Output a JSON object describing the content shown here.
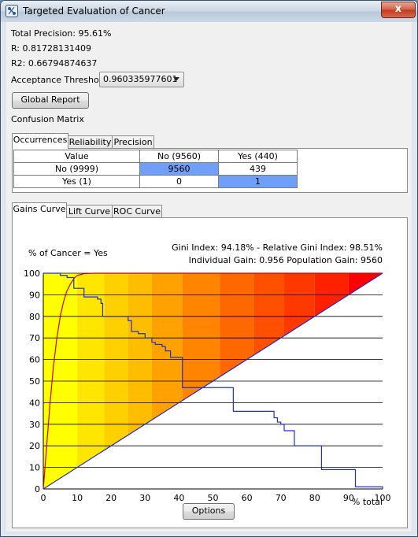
{
  "window": {
    "title": "Targeted Evaluation of  Cancer",
    "close_label": "x"
  },
  "stats": {
    "total_precision": "Total Precision: 95.61%",
    "r": "R: 0.81728131409",
    "r2": "R2: 0.66794874637"
  },
  "threshold": {
    "label": "Acceptance Threshold:",
    "value": "0.960335977601"
  },
  "global_report_label": "Global Report",
  "confusion_matrix_label": "Confusion Matrix",
  "matrix_tabs": [
    "Occurrences",
    "Reliability",
    "Precision"
  ],
  "matrix": {
    "headers": [
      "Value",
      "No (9560)",
      "Yes (440)"
    ],
    "rows": [
      {
        "label": "No (9999)",
        "cells": [
          "9560",
          "439"
        ]
      },
      {
        "label": "Yes (1)",
        "cells": [
          "0",
          "1"
        ]
      }
    ]
  },
  "chart_tabs": [
    "Gains Curve",
    "Lift Curve",
    "ROC Curve"
  ],
  "options_label": "Options",
  "colors": {
    "highlight_cell": "#6f9ff6",
    "gains_curve": "#cc0000",
    "model_curve": "#1f2fd0"
  },
  "chart_data": {
    "type": "line",
    "title": "",
    "ylabel": "% of Cancer = Yes",
    "xlabel": "% total",
    "info_line1": "Gini Index: 94.18% - Relative Gini Index: 98.51%",
    "info_line2": "Individual Gain: 0.956 Population Gain: 9560",
    "xlim": [
      0,
      100
    ],
    "ylim": [
      0,
      100
    ],
    "x_ticks": [
      0,
      10,
      20,
      30,
      40,
      50,
      60,
      70,
      80,
      90,
      100
    ],
    "y_ticks": [
      0,
      10,
      20,
      30,
      40,
      50,
      60,
      70,
      80,
      90,
      100
    ],
    "grid": "horizontal",
    "series": [
      {
        "x": [
          0,
          1,
          2,
          3,
          4,
          5,
          6,
          7,
          8,
          9,
          10,
          12,
          15,
          100
        ],
        "values": [
          0,
          20,
          40,
          57,
          70,
          80,
          87,
          92,
          95,
          97.5,
          99,
          99.8,
          100,
          100
        ]
      },
      {
        "x": [
          0,
          0.7,
          5,
          7,
          9,
          12,
          16,
          17,
          17.5,
          25,
          26,
          28,
          30,
          32,
          33,
          35,
          36,
          37.5,
          41,
          55,
          56,
          65,
          68,
          69,
          70,
          71,
          74,
          82,
          91,
          92,
          100
        ],
        "values": [
          100,
          100,
          99,
          98,
          93,
          89,
          88,
          86,
          80,
          78,
          73,
          72,
          70,
          68,
          67,
          66,
          64,
          61,
          47,
          47,
          36,
          36,
          33,
          31,
          30,
          27,
          20,
          9,
          9,
          1,
          0
        ]
      },
      {
        "x": [
          0,
          100
        ],
        "values": [
          0,
          100
        ]
      }
    ]
  }
}
